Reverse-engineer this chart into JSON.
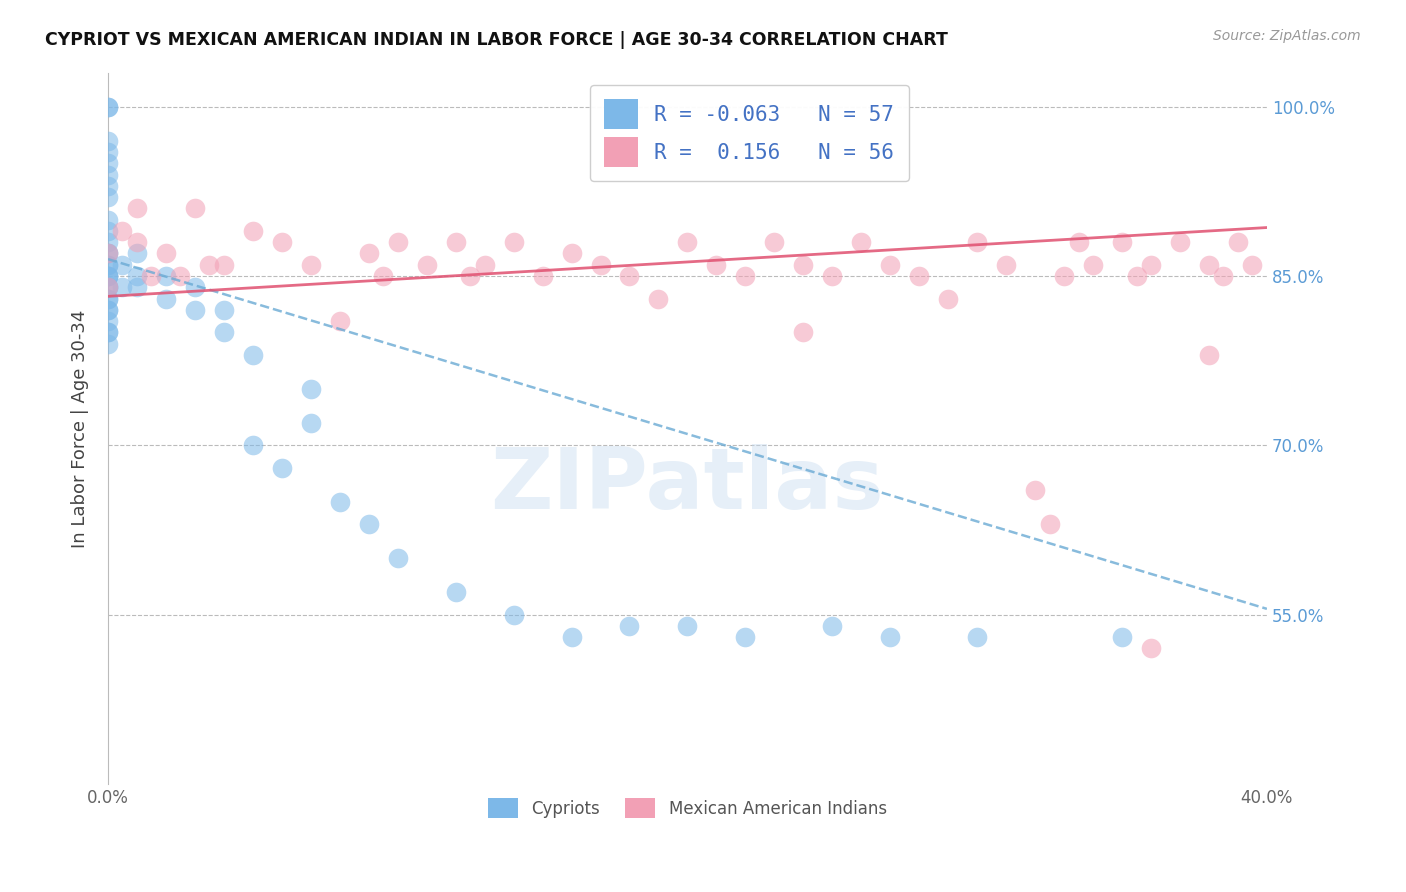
{
  "title": "CYPRIOT VS MEXICAN AMERICAN INDIAN IN LABOR FORCE | AGE 30-34 CORRELATION CHART",
  "source": "Source: ZipAtlas.com",
  "ylabel": "In Labor Force | Age 30-34",
  "ytick_labels": [
    "100.0%",
    "85.0%",
    "70.0%",
    "55.0%"
  ],
  "ytick_values": [
    1.0,
    0.85,
    0.7,
    0.55
  ],
  "blue_R": -0.063,
  "blue_N": 57,
  "pink_R": 0.156,
  "pink_N": 56,
  "blue_color": "#7DB8E8",
  "pink_color": "#F2A0B5",
  "blue_line_color": "#6AAAD4",
  "pink_line_color": "#E05070",
  "xlim": [
    0.0,
    0.4
  ],
  "ylim": [
    0.4,
    1.03
  ],
  "blue_points_x": [
    0.0,
    0.0,
    0.0,
    0.0,
    0.0,
    0.0,
    0.0,
    0.0,
    0.0,
    0.0,
    0.0,
    0.0,
    0.0,
    0.0,
    0.0,
    0.0,
    0.0,
    0.0,
    0.0,
    0.0,
    0.0,
    0.0,
    0.0,
    0.0,
    0.0,
    0.0,
    0.0,
    0.0,
    0.005,
    0.005,
    0.01,
    0.01,
    0.01,
    0.02,
    0.02,
    0.03,
    0.03,
    0.04,
    0.04,
    0.05,
    0.07,
    0.07,
    0.05,
    0.06,
    0.08,
    0.09,
    0.1,
    0.12,
    0.14,
    0.16,
    0.18,
    0.2,
    0.22,
    0.25,
    0.27,
    0.3,
    0.35
  ],
  "blue_points_y": [
    1.0,
    1.0,
    0.97,
    0.96,
    0.95,
    0.94,
    0.93,
    0.92,
    0.9,
    0.89,
    0.88,
    0.87,
    0.87,
    0.86,
    0.86,
    0.85,
    0.85,
    0.85,
    0.84,
    0.84,
    0.83,
    0.83,
    0.82,
    0.82,
    0.81,
    0.8,
    0.8,
    0.79,
    0.86,
    0.84,
    0.87,
    0.85,
    0.84,
    0.85,
    0.83,
    0.84,
    0.82,
    0.82,
    0.8,
    0.78,
    0.75,
    0.72,
    0.7,
    0.68,
    0.65,
    0.63,
    0.6,
    0.57,
    0.55,
    0.53,
    0.54,
    0.54,
    0.53,
    0.54,
    0.53,
    0.53,
    0.53
  ],
  "pink_points_x": [
    0.0,
    0.0,
    0.005,
    0.01,
    0.01,
    0.015,
    0.02,
    0.025,
    0.03,
    0.035,
    0.04,
    0.05,
    0.06,
    0.07,
    0.08,
    0.09,
    0.095,
    0.1,
    0.11,
    0.12,
    0.125,
    0.13,
    0.14,
    0.15,
    0.16,
    0.17,
    0.18,
    0.19,
    0.2,
    0.21,
    0.22,
    0.23,
    0.24,
    0.24,
    0.25,
    0.26,
    0.27,
    0.28,
    0.29,
    0.3,
    0.31,
    0.32,
    0.325,
    0.33,
    0.335,
    0.34,
    0.35,
    0.36,
    0.355,
    0.37,
    0.38,
    0.385,
    0.39,
    0.395,
    0.38,
    0.36
  ],
  "pink_points_y": [
    0.87,
    0.84,
    0.89,
    0.91,
    0.88,
    0.85,
    0.87,
    0.85,
    0.91,
    0.86,
    0.86,
    0.89,
    0.88,
    0.86,
    0.81,
    0.87,
    0.85,
    0.88,
    0.86,
    0.88,
    0.85,
    0.86,
    0.88,
    0.85,
    0.87,
    0.86,
    0.85,
    0.83,
    0.88,
    0.86,
    0.85,
    0.88,
    0.86,
    0.8,
    0.85,
    0.88,
    0.86,
    0.85,
    0.83,
    0.88,
    0.86,
    0.66,
    0.63,
    0.85,
    0.88,
    0.86,
    0.88,
    0.86,
    0.85,
    0.88,
    0.86,
    0.85,
    0.88,
    0.86,
    0.78,
    0.52
  ],
  "blue_trend_x0": 0.0,
  "blue_trend_y0": 0.865,
  "blue_trend_x1": 0.4,
  "blue_trend_y1": 0.555,
  "pink_trend_x0": 0.0,
  "pink_trend_y0": 0.832,
  "pink_trend_x1": 0.4,
  "pink_trend_y1": 0.893,
  "legend_label_blue": "Cypriots",
  "legend_label_pink": "Mexican American Indians"
}
